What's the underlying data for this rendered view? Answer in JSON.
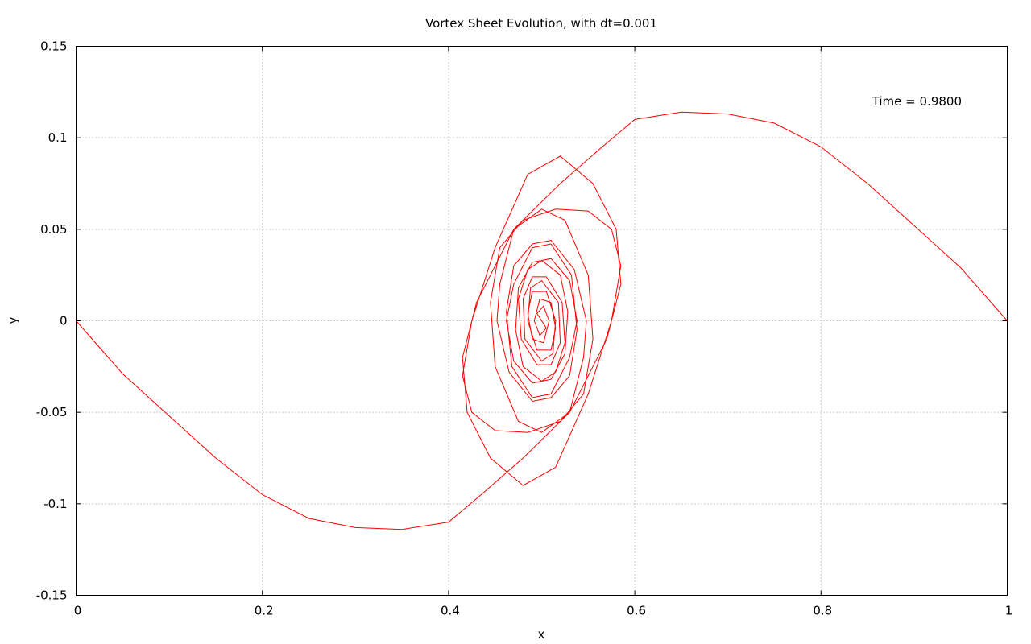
{
  "chart_data": {
    "type": "line",
    "title": "Vortex Sheet Evolution, with dt=0.001",
    "xlabel": "x",
    "ylabel": "y",
    "xlim": [
      0,
      1
    ],
    "ylim": [
      -0.15,
      0.15
    ],
    "x_ticks": [
      0,
      0.2,
      0.4,
      0.6,
      0.8,
      1
    ],
    "x_tick_labels": [
      "0",
      "0.2",
      "0.4",
      "0.6",
      "0.8",
      "1"
    ],
    "y_ticks": [
      -0.15,
      -0.1,
      -0.05,
      0,
      0.05,
      0.1,
      0.15
    ],
    "y_tick_labels": [
      "-0.15",
      "-0.1",
      "-0.05",
      "0",
      "0.05",
      "0.1",
      "0.15"
    ],
    "grid": true,
    "legend": "none",
    "annotation": "Time = 0.9800",
    "series": [
      {
        "color": "#ff0000",
        "x": [
          1.0,
          0.95,
          0.9,
          0.85,
          0.8,
          0.75,
          0.7,
          0.65,
          0.6,
          0.565,
          0.52,
          0.47,
          0.43,
          0.415,
          0.42,
          0.445,
          0.48,
          0.515,
          0.55,
          0.575,
          0.585,
          0.575,
          0.55,
          0.515,
          0.48,
          0.455,
          0.445,
          0.45,
          0.475,
          0.5,
          0.53,
          0.545,
          0.548,
          0.535,
          0.51,
          0.49,
          0.47,
          0.462,
          0.468,
          0.49,
          0.51,
          0.53,
          0.538,
          0.53,
          0.51,
          0.49,
          0.475,
          0.472,
          0.48,
          0.5,
          0.515,
          0.525,
          0.522,
          0.505,
          0.49,
          0.48,
          0.482,
          0.5,
          0.512,
          0.515,
          0.505,
          0.49,
          0.485,
          0.49,
          0.502,
          0.508,
          0.502,
          0.495,
          0.5
        ],
        "y": [
          0.0,
          0.029,
          0.052,
          0.075,
          0.095,
          0.108,
          0.113,
          0.114,
          0.11,
          0.095,
          0.075,
          0.05,
          0.01,
          -0.02,
          -0.05,
          -0.075,
          -0.09,
          -0.08,
          -0.04,
          0.0,
          0.03,
          0.05,
          0.06,
          0.061,
          0.055,
          0.04,
          0.01,
          -0.025,
          -0.055,
          -0.061,
          -0.05,
          -0.02,
          0.0,
          0.028,
          0.044,
          0.042,
          0.03,
          0.005,
          -0.025,
          -0.042,
          -0.04,
          -0.02,
          0.0,
          0.022,
          0.034,
          0.032,
          0.018,
          -0.005,
          -0.025,
          -0.033,
          -0.028,
          -0.012,
          0.01,
          0.024,
          0.024,
          0.012,
          -0.01,
          -0.022,
          -0.018,
          0.0,
          0.016,
          0.016,
          0.004,
          -0.01,
          -0.012,
          0.0,
          0.008,
          0.004,
          0.0
        ],
        "symmetric_half": true
      }
    ]
  }
}
